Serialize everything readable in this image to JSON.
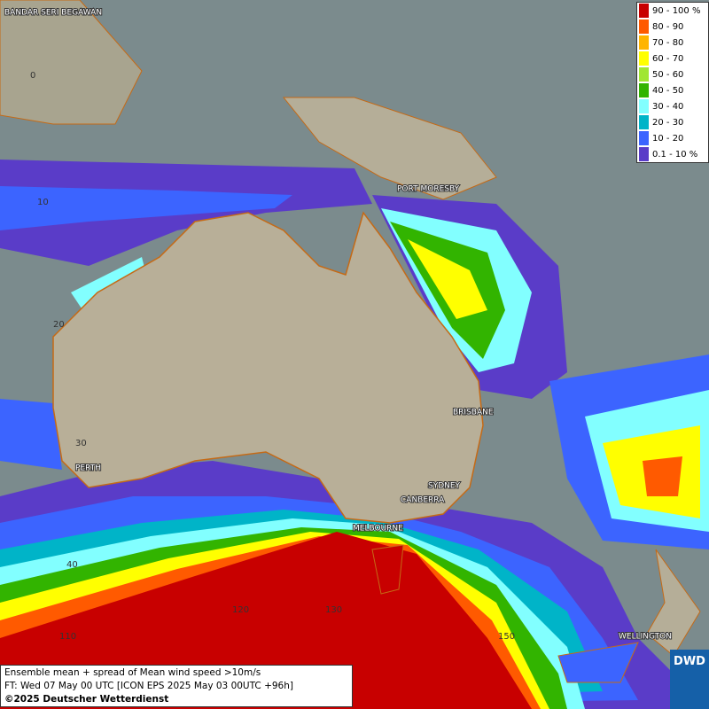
{
  "legend": {
    "items": [
      {
        "label": "90 - 100 %",
        "color": "#c80000"
      },
      {
        "label": "80 - 90",
        "color": "#ff5a00"
      },
      {
        "label": "70 - 80",
        "color": "#ffb400"
      },
      {
        "label": "60 - 70",
        "color": "#ffff00"
      },
      {
        "label": "50 - 60",
        "color": "#a0e632"
      },
      {
        "label": "40 - 50",
        "color": "#32b400"
      },
      {
        "label": "30 - 40",
        "color": "#82ffff"
      },
      {
        "label": "20 - 30",
        "color": "#00b4c8"
      },
      {
        "label": "10 - 20",
        "color": "#3c64ff"
      },
      {
        "label": "0.1 - 10 %",
        "color": "#5a3cc8"
      }
    ]
  },
  "cities": [
    {
      "name": "BANDAR SERI BEGAWAN"
    },
    {
      "name": "PORT MORESBY"
    },
    {
      "name": "BRISBANE"
    },
    {
      "name": "SYDNEY"
    },
    {
      "name": "CANBERRA"
    },
    {
      "name": "MELBOURNE"
    },
    {
      "name": "PERTH"
    },
    {
      "name": "WELLINGTON"
    }
  ],
  "grid_labels": [
    "0",
    "10",
    "20",
    "30",
    "40",
    "110",
    "120",
    "130",
    "150"
  ],
  "caption": {
    "lines": [
      "Ensemble mean + spread of Mean wind speed >10m/s",
      "FT: Wed 07 May 00 UTC [ICON EPS 2025 May 03 00UTC +96h]",
      "©2025 Deutscher Wetterdienst"
    ]
  },
  "logo": "DWD"
}
